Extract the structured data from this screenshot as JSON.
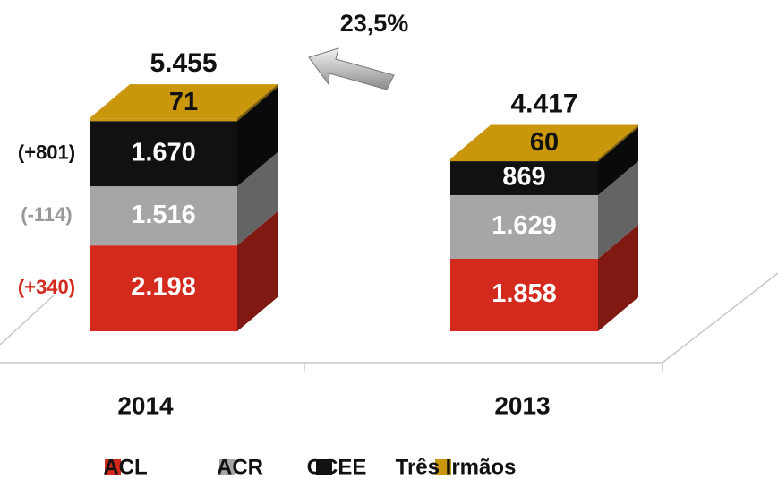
{
  "chart_data": {
    "type": "bar",
    "stacked": true,
    "categories": [
      "2014",
      "2013"
    ],
    "series": [
      {
        "name": "ACL",
        "color": "#d42a1e",
        "values": [
          2198,
          1858
        ],
        "value_labels": [
          "2.198",
          "1.858"
        ]
      },
      {
        "name": "ACR",
        "color": "#a6a6a6",
        "values": [
          1516,
          1629
        ],
        "value_labels": [
          "1.516",
          "1.629"
        ]
      },
      {
        "name": "CCEE",
        "color": "#111111",
        "values": [
          1670,
          869
        ],
        "value_labels": [
          "1.670",
          "869"
        ]
      },
      {
        "name": "Três Irmãos",
        "color": "#c9960c",
        "values": [
          71,
          60
        ],
        "value_labels": [
          "71",
          "60"
        ]
      }
    ],
    "totals": {
      "values": [
        5455,
        4417
      ],
      "value_labels": [
        "5.455",
        "4.417"
      ]
    },
    "changes": {
      "values": [
        340,
        -114,
        801
      ],
      "value_labels": [
        "(+340)",
        "(-114)",
        "(+801)"
      ],
      "colors": [
        "#d42a1e",
        "#999999",
        "#111111"
      ]
    },
    "annotation": {
      "value": 23.5,
      "label": "23,5%"
    }
  }
}
